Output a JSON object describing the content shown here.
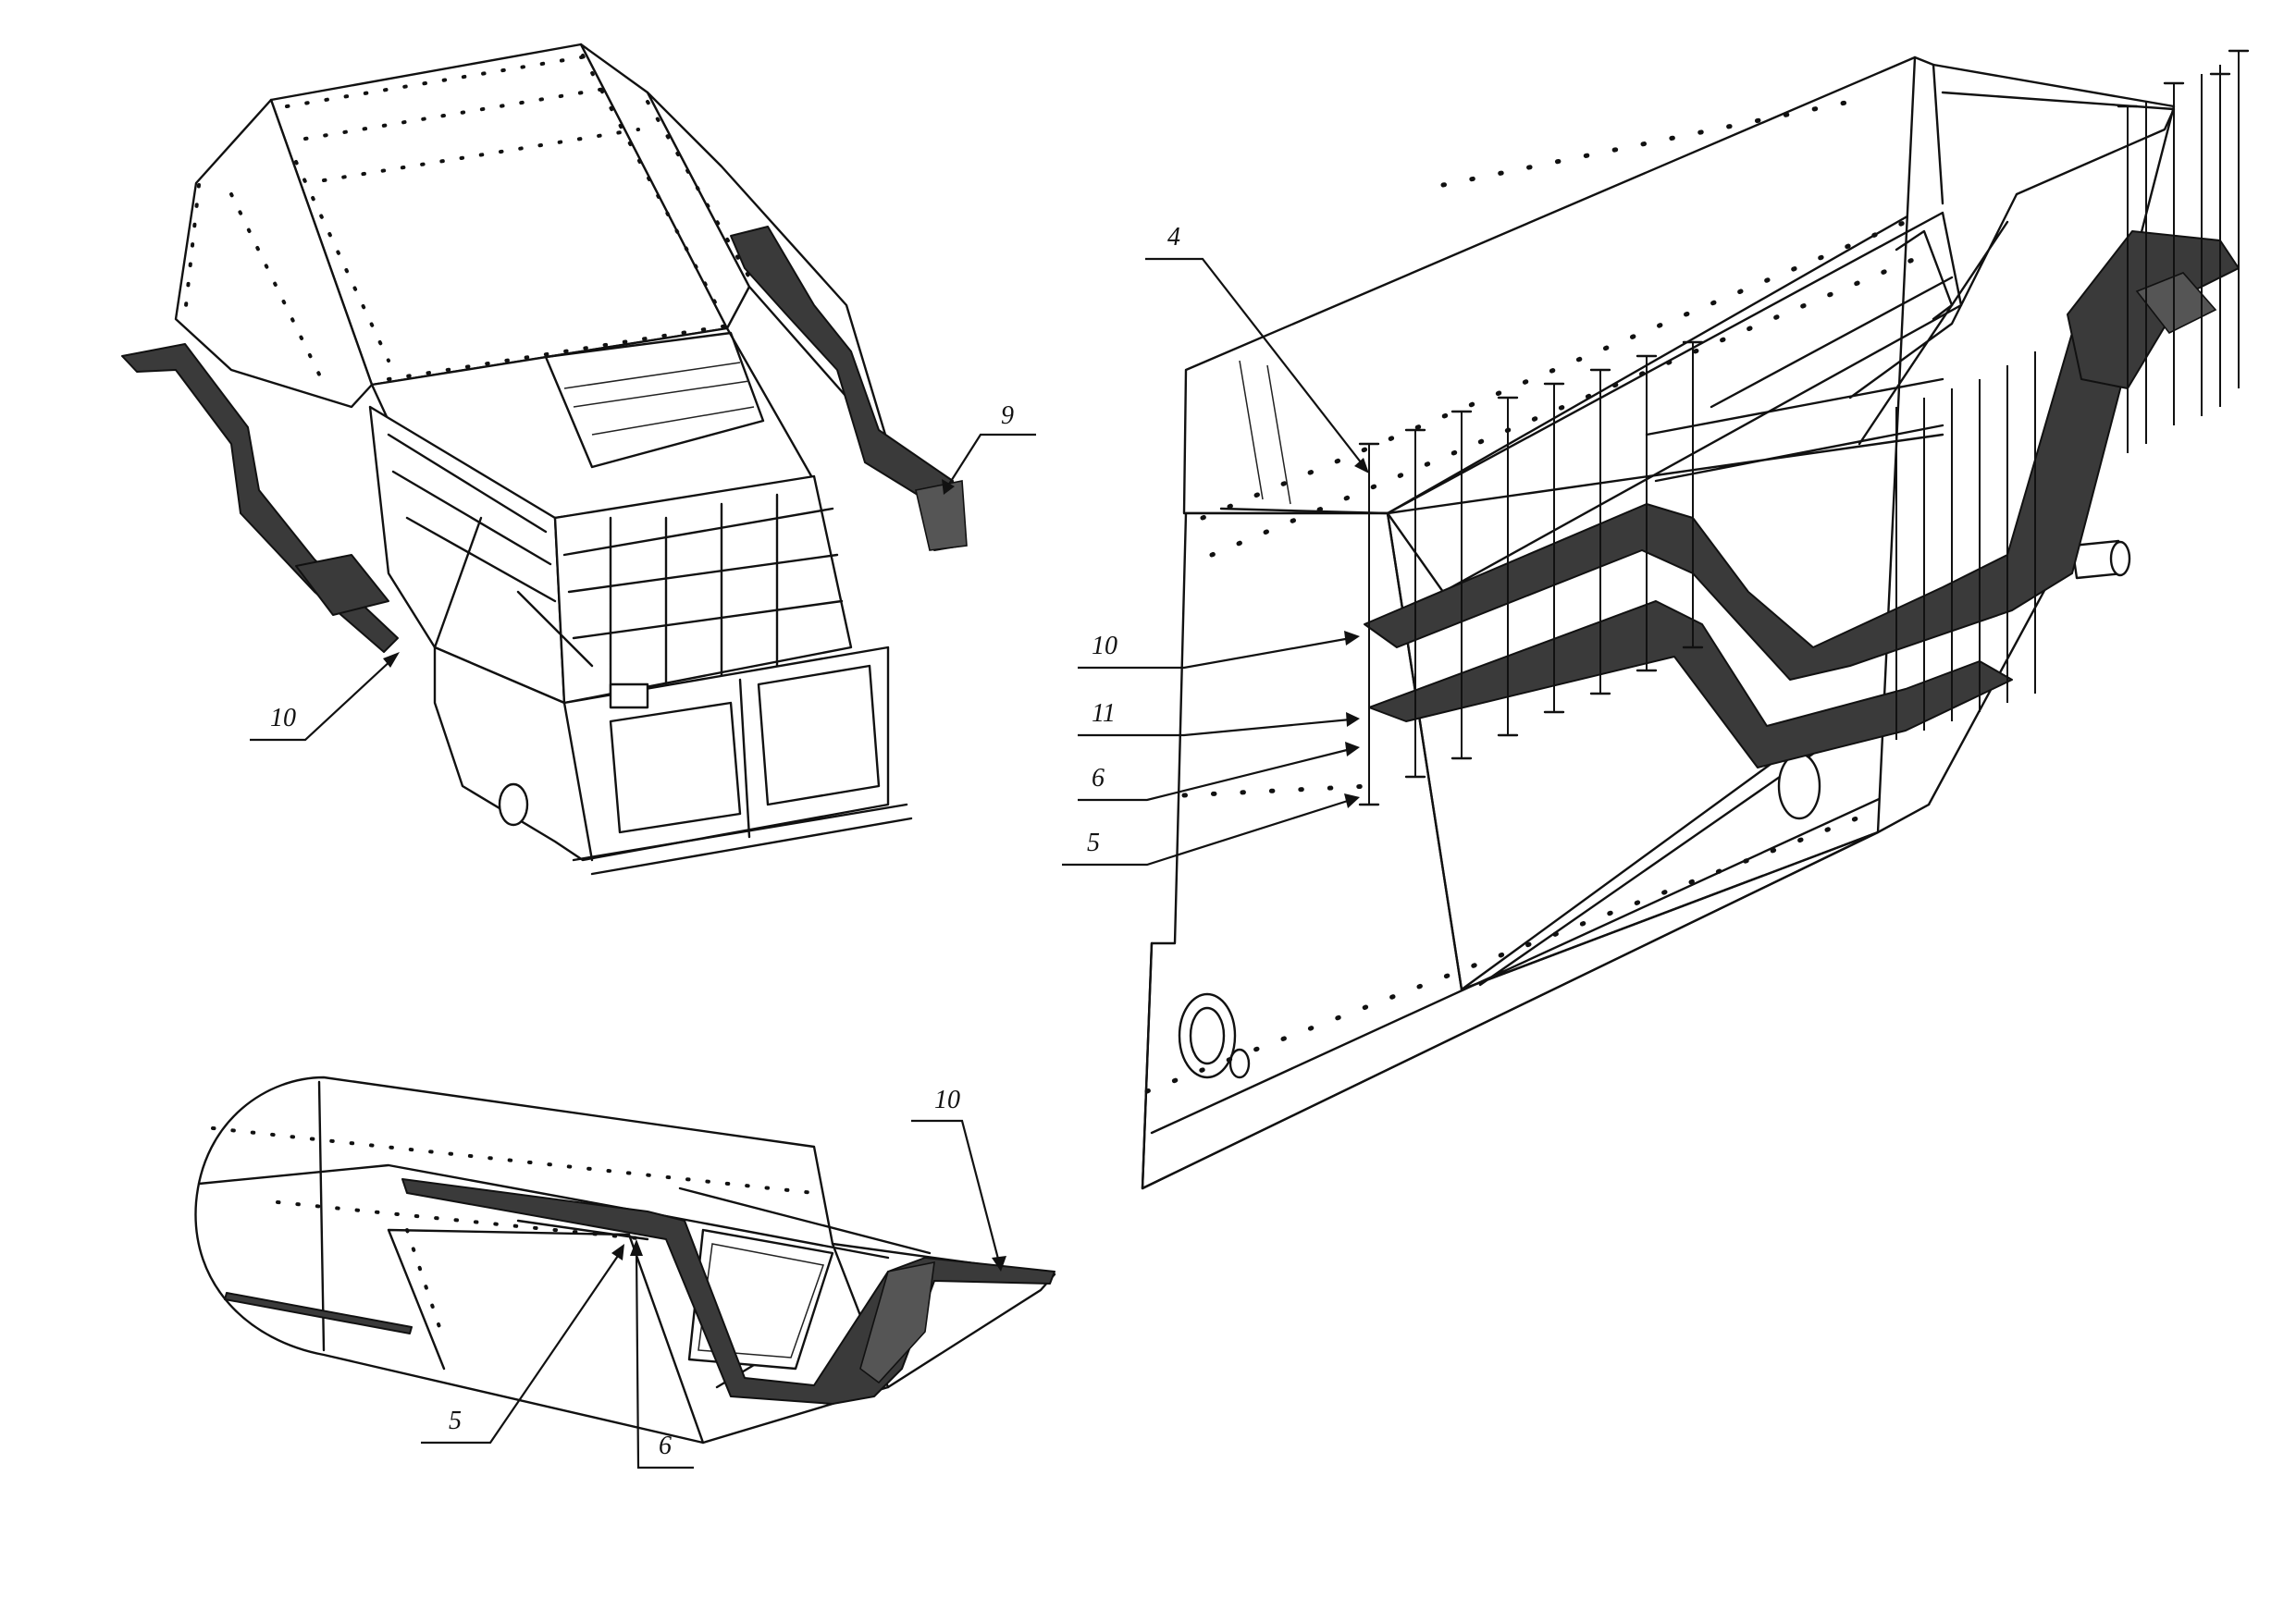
{
  "callouts": {
    "view1": {
      "label_9": "9",
      "label_10": "10"
    },
    "view2": {
      "label_4": "4",
      "label_10": "10",
      "label_11": "11",
      "label_6": "6",
      "label_5": "5"
    },
    "view3": {
      "label_10": "10",
      "label_5": "5",
      "label_6": "6"
    }
  }
}
